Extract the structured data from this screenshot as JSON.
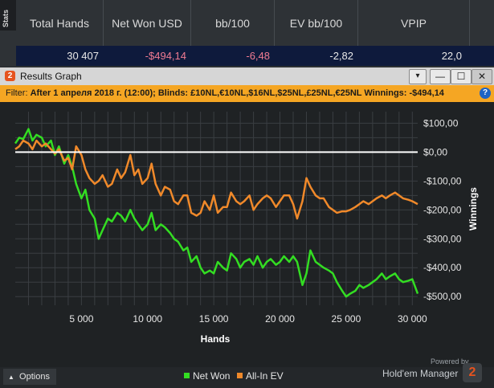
{
  "stats_panel": {
    "tab_label": "Stats",
    "headers": [
      "Total Hands",
      "Net Won USD",
      "bb/100",
      "EV bb/100",
      "VPIP"
    ],
    "values": [
      "30 407",
      "-$494,14",
      "-6,48",
      "-2,82",
      "22,0"
    ]
  },
  "window": {
    "logo": "2",
    "title": "Results Graph",
    "buttons": [
      "▾",
      "—",
      "☐",
      "✕"
    ]
  },
  "filter": {
    "label": "Filter:",
    "text": "After 1 апреля 2018 г. (12:00); Blinds: £10NL,€10NL,$16NL,$25NL,£25NL,€25NL Winnings: -$494,14",
    "help": "?"
  },
  "footer": {
    "options_label": "Options",
    "options_icon": "▲",
    "powered_by": "Powered by",
    "brand": "Hold'em Manager",
    "brand_logo": "2"
  },
  "colors": {
    "net_won": "#33dd22",
    "all_in_ev": "#f0892a",
    "zero_line": "#ffffff",
    "accent": "#f5a623"
  },
  "chart_data": {
    "type": "line",
    "xlabel": "Hands",
    "ylabel": "Winnings",
    "xlim": [
      0,
      30407
    ],
    "ylim": [
      -530,
      140
    ],
    "x_ticks": [
      5000,
      10000,
      15000,
      20000,
      25000,
      30000
    ],
    "x_tick_labels": [
      "5 000",
      "10 000",
      "15 000",
      "20 000",
      "25 000",
      "30 000"
    ],
    "y_ticks": [
      100,
      0,
      -100,
      -200,
      -300,
      -400,
      -500
    ],
    "y_tick_labels": [
      "$100,00",
      "$0,00",
      "-$100,00",
      "-$200,00",
      "-$300,00",
      "-$400,00",
      "-$500,00"
    ],
    "grid": true,
    "legend": "bottom-center",
    "series": [
      {
        "name": "Net Won",
        "color": "#33dd22",
        "x": [
          0,
          300,
          600,
          1000,
          1300,
          1600,
          2000,
          2300,
          2700,
          3000,
          3300,
          3700,
          4000,
          4300,
          4600,
          5000,
          5300,
          5600,
          6000,
          6300,
          6600,
          7000,
          7300,
          7700,
          8000,
          8300,
          8700,
          9000,
          9300,
          9600,
          10000,
          10300,
          10600,
          11000,
          11300,
          11700,
          12000,
          12300,
          12700,
          13000,
          13300,
          13700,
          14000,
          14300,
          14700,
          15000,
          15300,
          15700,
          16000,
          16300,
          16700,
          17000,
          17300,
          17700,
          18000,
          18300,
          18700,
          19000,
          19300,
          19700,
          20000,
          20300,
          20700,
          21000,
          21300,
          21700,
          22000,
          22300,
          22700,
          23000,
          23300,
          23700,
          24000,
          24300,
          24700,
          25000,
          25300,
          25700,
          26000,
          26300,
          26700,
          27000,
          27300,
          27700,
          28000,
          28300,
          28700,
          29000,
          29300,
          29700,
          30000,
          30407
        ],
        "values": [
          30,
          50,
          45,
          80,
          40,
          60,
          50,
          20,
          40,
          -10,
          20,
          -40,
          -10,
          -50,
          -110,
          -160,
          -130,
          -200,
          -230,
          -300,
          -270,
          -230,
          -240,
          -210,
          -220,
          -240,
          -200,
          -230,
          -250,
          -270,
          -250,
          -210,
          -270,
          -250,
          -260,
          -280,
          -300,
          -310,
          -340,
          -330,
          -380,
          -360,
          -400,
          -420,
          -410,
          -420,
          -380,
          -400,
          -410,
          -350,
          -370,
          -400,
          -380,
          -370,
          -390,
          -360,
          -400,
          -380,
          -370,
          -390,
          -380,
          -360,
          -380,
          -360,
          -380,
          -460,
          -420,
          -340,
          -380,
          -390,
          -400,
          -410,
          -420,
          -450,
          -480,
          -500,
          -490,
          -480,
          -460,
          -470,
          -460,
          -450,
          -440,
          -420,
          -440,
          -430,
          -420,
          -440,
          -450,
          -445,
          -440,
          -490
        ]
      },
      {
        "name": "All-In EV",
        "color": "#f0892a",
        "x": [
          0,
          300,
          600,
          1000,
          1300,
          1600,
          2000,
          2300,
          2700,
          3000,
          3300,
          3700,
          4000,
          4300,
          4600,
          5000,
          5300,
          5600,
          6000,
          6300,
          6600,
          7000,
          7300,
          7700,
          8000,
          8300,
          8700,
          9000,
          9300,
          9600,
          10000,
          10300,
          10600,
          11000,
          11300,
          11700,
          12000,
          12300,
          12700,
          13000,
          13300,
          13700,
          14000,
          14300,
          14700,
          15000,
          15300,
          15700,
          16000,
          16300,
          16700,
          17000,
          17300,
          17700,
          18000,
          18300,
          18700,
          19000,
          19300,
          19700,
          20000,
          20300,
          20700,
          21000,
          21300,
          21700,
          22000,
          22300,
          22700,
          23000,
          23300,
          23700,
          24000,
          24300,
          24700,
          25000,
          25300,
          25700,
          26000,
          26300,
          26700,
          27000,
          27300,
          27700,
          28000,
          28300,
          28700,
          29000,
          29300,
          29700,
          30000,
          30407
        ],
        "values": [
          10,
          20,
          40,
          30,
          10,
          40,
          20,
          30,
          10,
          -5,
          10,
          -30,
          -20,
          -60,
          20,
          -10,
          -60,
          -90,
          -110,
          -100,
          -80,
          -120,
          -110,
          -60,
          -90,
          -70,
          -10,
          -80,
          -60,
          -110,
          -90,
          -40,
          -110,
          -150,
          -120,
          -130,
          -170,
          -180,
          -150,
          -150,
          -210,
          -220,
          -210,
          -170,
          -200,
          -150,
          -210,
          -190,
          -190,
          -140,
          -170,
          -180,
          -170,
          -150,
          -200,
          -180,
          -160,
          -150,
          -160,
          -190,
          -170,
          -150,
          -150,
          -180,
          -230,
          -170,
          -90,
          -120,
          -150,
          -160,
          -160,
          -190,
          -200,
          -210,
          -205,
          -205,
          -200,
          -190,
          -180,
          -170,
          -180,
          -170,
          -160,
          -150,
          -160,
          -150,
          -140,
          -150,
          -160,
          -165,
          -170,
          -180
        ]
      }
    ]
  }
}
